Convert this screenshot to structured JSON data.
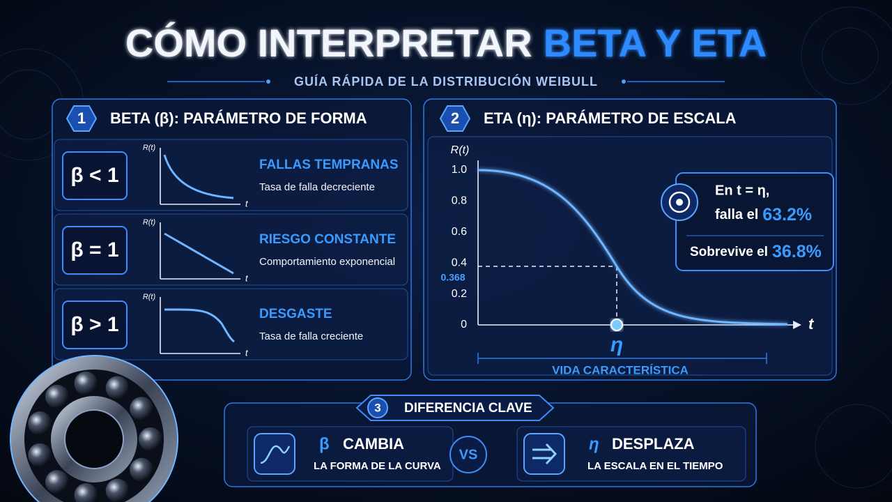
{
  "header": {
    "title_main": "CÓMO INTERPRETAR",
    "title_highlight": "BETA Y ETA",
    "subtitle": "GUÍA RÁPIDA DE LA DISTRIBUCIÓN WEIBULL"
  },
  "beta_panel": {
    "number": "1",
    "title": "BETA (β): PARÁMETRO DE FORMA",
    "cases": [
      {
        "symbol": "β < 1",
        "axis_y": "R(t)",
        "axis_x": "t",
        "heading": "FALLAS TEMPRANAS",
        "description": "Tasa de falla decreciente"
      },
      {
        "symbol": "β = 1",
        "axis_y": "R(t)",
        "axis_x": "t",
        "heading": "RIESGO CONSTANTE",
        "description": "Comportamiento exponencial"
      },
      {
        "symbol": "β > 1",
        "axis_y": "R(t)",
        "axis_x": "t",
        "heading": "DESGASTE",
        "description": "Tasa de falla creciente"
      }
    ]
  },
  "eta_panel": {
    "number": "2",
    "title": "ETA (η): PARÁMETRO DE ESCALA",
    "axis_y": "R(t)",
    "axis_x": "t",
    "yticks": [
      "1.0",
      "0.8",
      "0.6",
      "0.4",
      "0.2",
      "0"
    ],
    "marker_value": "0.368",
    "eta_symbol": "η",
    "span_label": "VIDA CARACTERÍSTICA",
    "callout": {
      "line1": "En t = η,",
      "line2_prefix": "falla el",
      "line2_value": "63.2%",
      "line3_prefix": "Sobrevive el",
      "line3_value": "36.8%"
    }
  },
  "difference_panel": {
    "number": "3",
    "title": "DIFERENCIA CLAVE",
    "left": {
      "symbol": "β",
      "verb": "CAMBIA",
      "description": "LA FORMA DE LA CURVA"
    },
    "vs": "VS",
    "right": {
      "symbol": "η",
      "verb": "DESPLAZA",
      "description": "LA ESCALA EN EL TIEMPO"
    }
  }
}
